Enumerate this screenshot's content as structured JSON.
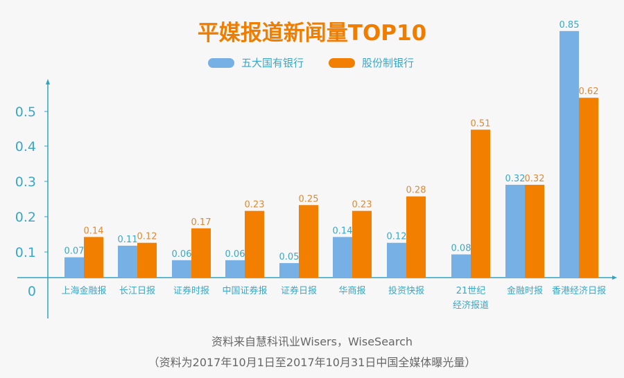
{
  "chart_data": {
    "type": "bar",
    "title": "平媒报道新闻量TOP10",
    "categories": [
      "上海金融报",
      "长江日报",
      "证券时报",
      "中国证券报",
      "证券日报",
      "华商报",
      "投资快报",
      "21世纪\n经济报道",
      "金融时报",
      "香港经济日报"
    ],
    "series": [
      {
        "name": "五大国有银行",
        "color": "#76b0e4",
        "values": [
          0.07,
          0.11,
          0.06,
          0.06,
          0.05,
          0.14,
          0.12,
          0.08,
          0.32,
          0.85
        ]
      },
      {
        "name": "股份制银行",
        "color": "#f27f00",
        "values": [
          0.14,
          0.12,
          0.17,
          0.23,
          0.25,
          0.23,
          0.28,
          0.51,
          0.32,
          0.62
        ]
      }
    ],
    "yticks": [
      "0",
      "0.1",
      "0.2",
      "0.3",
      "0.4",
      "0.5"
    ],
    "ylim": [
      0,
      0.9
    ],
    "xlabel": "",
    "ylabel": "",
    "grid": false,
    "legend": "top"
  },
  "footer": {
    "source": "资料来自慧科讯业Wisers，WiseSearch",
    "note": "（资料为2017年10月1日至2017年10月31日中国全媒体曝光量）"
  }
}
